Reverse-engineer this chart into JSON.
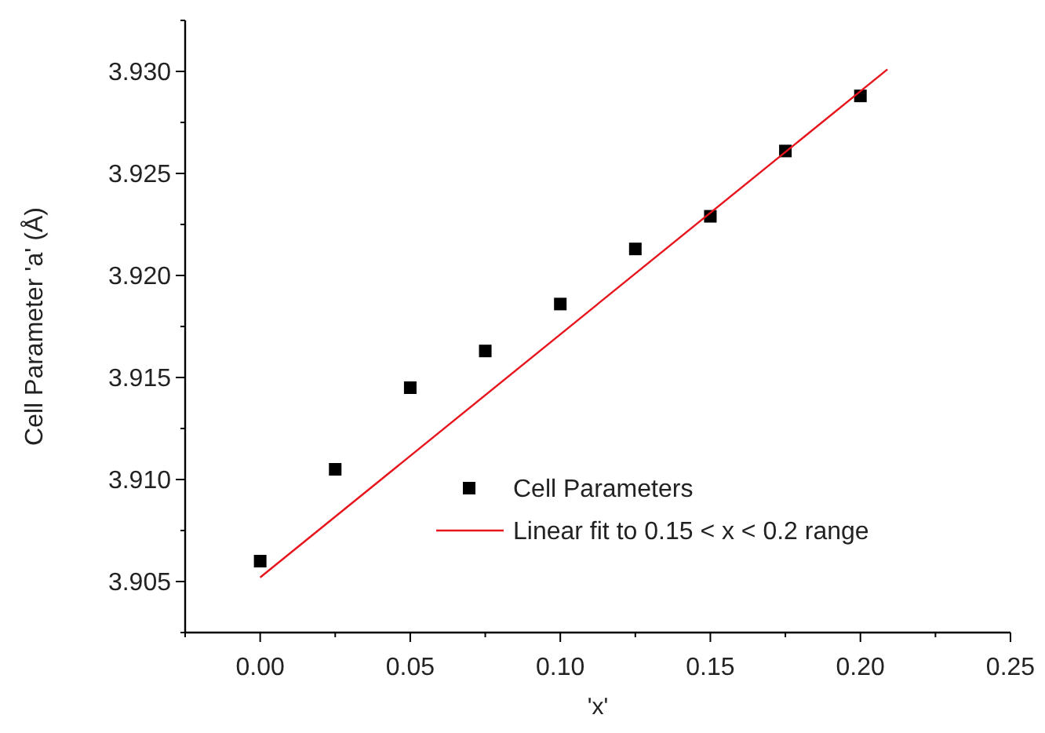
{
  "chart_data": {
    "type": "scatter",
    "xlabel": "'x'",
    "ylabel": "Cell Parameter 'a' (Å)",
    "xlim": [
      -0.025,
      0.25
    ],
    "ylim": [
      3.9025,
      3.9325
    ],
    "xticks": [
      {
        "value": -0.025,
        "label": null
      },
      {
        "value": 0,
        "label": "0.00"
      },
      {
        "value": 0.025,
        "label": null
      },
      0.05,
      {
        "value": 0.075,
        "label": null
      },
      {
        "value": 0.1,
        "label": "0.10"
      },
      {
        "value": 0.125,
        "label": null
      },
      0.15,
      {
        "value": 0.175,
        "label": null
      },
      {
        "value": 0.2,
        "label": "0.20"
      },
      {
        "value": 0.225,
        "label": null
      },
      0.25
    ],
    "yticks": [
      {
        "value": 3.9025,
        "label": null
      },
      3.905,
      {
        "value": 3.9075,
        "label": null
      },
      {
        "value": 3.91,
        "label": "3.910"
      },
      {
        "value": 3.9125,
        "label": null
      },
      3.915,
      {
        "value": 3.9175,
        "label": null
      },
      {
        "value": 3.92,
        "label": "3.920"
      },
      {
        "value": 3.9225,
        "label": null
      },
      3.925,
      {
        "value": 3.9275,
        "label": null
      },
      {
        "value": 3.93,
        "label": "3.930"
      },
      {
        "value": 3.9325,
        "label": null
      }
    ],
    "legend": "bottom right",
    "grid": false,
    "series": [
      {
        "name": "Cell Parameters",
        "marker": "square",
        "color": "#000000",
        "x": [
          0,
          0.025,
          0.05,
          0.075,
          0.1,
          0.125,
          0.15,
          0.175,
          0.2
        ],
        "values": [
          3.906,
          3.9105,
          3.9145,
          3.9163,
          3.9186,
          3.9213,
          3.9229,
          3.9261,
          3.9288
        ]
      },
      {
        "name": "Linear fit to 0.15 < x < 0.2 range",
        "type": "line",
        "marker": "none",
        "line_style": "solid",
        "color": "#e8141c",
        "x": [
          0,
          0.209
        ],
        "values": [
          3.9052,
          3.9301
        ]
      }
    ]
  }
}
